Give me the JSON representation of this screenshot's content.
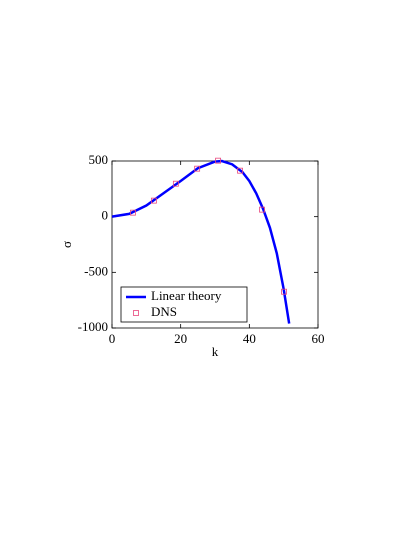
{
  "chart_data": {
    "type": "line",
    "xlabel": "k",
    "ylabel": "σ",
    "xlim": [
      0,
      60
    ],
    "xticks": [
      0,
      20,
      40,
      60
    ],
    "ylim": [
      -1000,
      500
    ],
    "yticks": [
      -1000,
      -500,
      0,
      500
    ],
    "legend": "lower left",
    "series": [
      {
        "name": "Linear theory",
        "color": "#0000ff",
        "style": "line",
        "x": [
          0,
          5,
          10,
          15,
          20,
          25,
          30,
          32,
          35,
          38,
          40,
          42,
          44,
          46,
          48,
          50,
          51.6
        ],
        "values": [
          0,
          25,
          100,
          210,
          320,
          435,
          495,
          500,
          470,
          400,
          320,
          210,
          70,
          -100,
          -330,
          -650,
          -960
        ]
      },
      {
        "name": "DNS",
        "color": "#e8467c",
        "style": "markers",
        "x": [
          6.1,
          12.2,
          18.6,
          24.8,
          30.9,
          37.3,
          43.7,
          50.1
        ],
        "values": [
          36,
          144,
          296,
          431,
          503,
          413,
          63,
          -674
        ]
      }
    ]
  }
}
